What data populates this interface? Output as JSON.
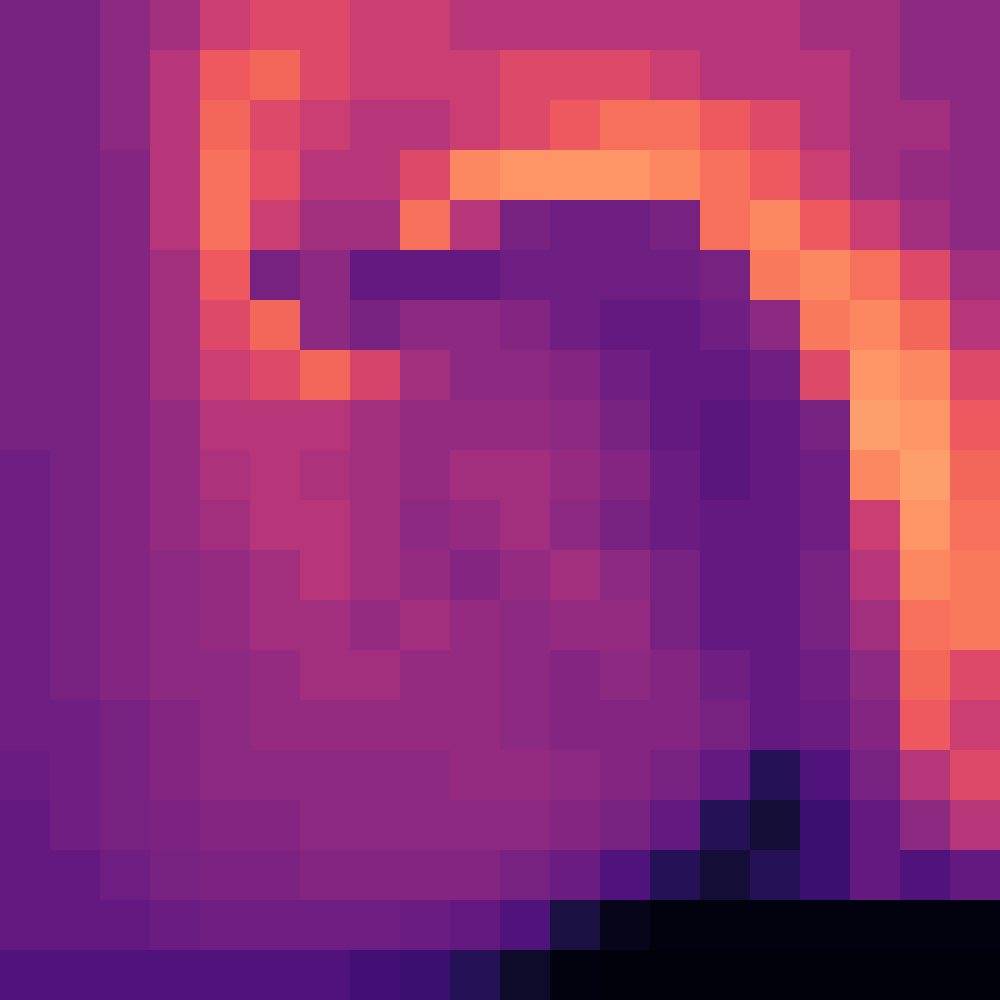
{
  "chart_data": {
    "type": "heatmap",
    "color": "magma",
    "tick_labels": false,
    "zlim": [
      0,
      1
    ],
    "cells": [
      [
        0.35,
        0.35,
        0.4,
        0.45,
        0.55,
        0.6,
        0.6,
        0.55,
        0.55,
        0.5,
        0.5,
        0.5,
        0.5,
        0.5,
        0.5,
        0.5,
        0.45,
        0.45,
        0.4,
        0.4
      ],
      [
        0.35,
        0.35,
        0.4,
        0.5,
        0.65,
        0.68,
        0.6,
        0.55,
        0.55,
        0.55,
        0.6,
        0.6,
        0.6,
        0.55,
        0.5,
        0.5,
        0.5,
        0.45,
        0.4,
        0.4
      ],
      [
        0.35,
        0.35,
        0.4,
        0.5,
        0.68,
        0.6,
        0.55,
        0.5,
        0.5,
        0.55,
        0.6,
        0.65,
        0.7,
        0.7,
        0.65,
        0.6,
        0.5,
        0.45,
        0.45,
        0.4
      ],
      [
        0.35,
        0.35,
        0.38,
        0.5,
        0.7,
        0.62,
        0.5,
        0.5,
        0.6,
        0.75,
        0.78,
        0.78,
        0.78,
        0.75,
        0.7,
        0.65,
        0.55,
        0.45,
        0.42,
        0.4
      ],
      [
        0.35,
        0.35,
        0.38,
        0.5,
        0.7,
        0.55,
        0.45,
        0.45,
        0.7,
        0.5,
        0.35,
        0.33,
        0.33,
        0.35,
        0.7,
        0.75,
        0.65,
        0.55,
        0.45,
        0.4
      ],
      [
        0.35,
        0.35,
        0.38,
        0.45,
        0.65,
        0.35,
        0.4,
        0.3,
        0.3,
        0.3,
        0.33,
        0.33,
        0.33,
        0.33,
        0.35,
        0.72,
        0.75,
        0.7,
        0.6,
        0.45
      ],
      [
        0.35,
        0.35,
        0.38,
        0.45,
        0.6,
        0.68,
        0.4,
        0.35,
        0.4,
        0.4,
        0.38,
        0.33,
        0.3,
        0.3,
        0.33,
        0.4,
        0.72,
        0.75,
        0.68,
        0.5
      ],
      [
        0.35,
        0.35,
        0.38,
        0.45,
        0.55,
        0.6,
        0.68,
        0.58,
        0.45,
        0.4,
        0.4,
        0.38,
        0.33,
        0.3,
        0.3,
        0.33,
        0.6,
        0.78,
        0.75,
        0.6
      ],
      [
        0.35,
        0.35,
        0.38,
        0.42,
        0.5,
        0.5,
        0.5,
        0.45,
        0.42,
        0.42,
        0.42,
        0.4,
        0.35,
        0.3,
        0.28,
        0.3,
        0.35,
        0.8,
        0.78,
        0.65
      ],
      [
        0.33,
        0.35,
        0.38,
        0.42,
        0.48,
        0.5,
        0.48,
        0.45,
        0.42,
        0.45,
        0.45,
        0.42,
        0.38,
        0.32,
        0.28,
        0.3,
        0.33,
        0.75,
        0.8,
        0.68
      ],
      [
        0.33,
        0.35,
        0.38,
        0.42,
        0.45,
        0.5,
        0.5,
        0.45,
        0.4,
        0.42,
        0.45,
        0.4,
        0.35,
        0.32,
        0.3,
        0.3,
        0.33,
        0.55,
        0.78,
        0.7
      ],
      [
        0.33,
        0.35,
        0.38,
        0.4,
        0.42,
        0.45,
        0.5,
        0.45,
        0.42,
        0.38,
        0.42,
        0.45,
        0.4,
        0.35,
        0.3,
        0.3,
        0.35,
        0.5,
        0.75,
        0.72
      ],
      [
        0.33,
        0.35,
        0.38,
        0.4,
        0.42,
        0.45,
        0.45,
        0.42,
        0.45,
        0.42,
        0.4,
        0.42,
        0.42,
        0.35,
        0.3,
        0.3,
        0.35,
        0.45,
        0.7,
        0.72
      ],
      [
        0.33,
        0.35,
        0.38,
        0.4,
        0.4,
        0.42,
        0.45,
        0.45,
        0.42,
        0.42,
        0.4,
        0.38,
        0.4,
        0.38,
        0.33,
        0.3,
        0.33,
        0.4,
        0.68,
        0.6
      ],
      [
        0.33,
        0.33,
        0.35,
        0.38,
        0.4,
        0.42,
        0.42,
        0.42,
        0.42,
        0.42,
        0.4,
        0.38,
        0.38,
        0.38,
        0.35,
        0.3,
        0.32,
        0.38,
        0.65,
        0.55
      ],
      [
        0.32,
        0.33,
        0.35,
        0.38,
        0.4,
        0.4,
        0.4,
        0.4,
        0.4,
        0.42,
        0.42,
        0.4,
        0.38,
        0.35,
        0.3,
        0.15,
        0.25,
        0.35,
        0.5,
        0.6
      ],
      [
        0.3,
        0.33,
        0.35,
        0.36,
        0.38,
        0.38,
        0.4,
        0.4,
        0.4,
        0.4,
        0.4,
        0.38,
        0.35,
        0.3,
        0.15,
        0.1,
        0.2,
        0.3,
        0.4,
        0.5
      ],
      [
        0.3,
        0.3,
        0.33,
        0.35,
        0.36,
        0.36,
        0.38,
        0.38,
        0.38,
        0.38,
        0.35,
        0.32,
        0.25,
        0.15,
        0.1,
        0.15,
        0.2,
        0.3,
        0.25,
        0.3
      ],
      [
        0.3,
        0.3,
        0.3,
        0.32,
        0.33,
        0.33,
        0.33,
        0.33,
        0.32,
        0.3,
        0.25,
        0.12,
        0.05,
        0.03,
        0.03,
        0.03,
        0.03,
        0.03,
        0.03,
        0.03
      ],
      [
        0.25,
        0.25,
        0.25,
        0.25,
        0.25,
        0.25,
        0.25,
        0.22,
        0.2,
        0.15,
        0.08,
        0.03,
        0.02,
        0.02,
        0.02,
        0.02,
        0.02,
        0.02,
        0.02,
        0.02
      ]
    ]
  }
}
